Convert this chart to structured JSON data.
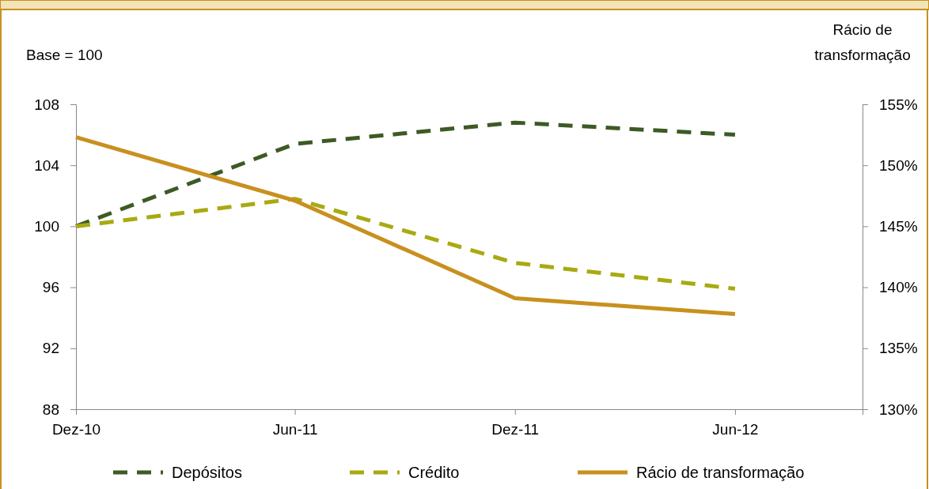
{
  "chart_data": {
    "type": "line",
    "ylabel": "Base = 100",
    "y2label": "Rácio de transformação",
    "x": [
      "2010-12",
      "2011-06",
      "2011-12",
      "2012-06"
    ],
    "xlim": [
      "2010-12",
      "2012-09-15"
    ],
    "xticks": [
      {
        "value": "2010-12",
        "label": "Dez-10"
      },
      {
        "value": "2011-06",
        "label": "Jun-11"
      },
      {
        "value": "2011-12",
        "label": "Dez-11"
      },
      {
        "value": "2012-06",
        "label": "Jun-12"
      }
    ],
    "ylim": [
      88,
      108
    ],
    "yticks": [
      88,
      92,
      96,
      100,
      104,
      108
    ],
    "y2lim": [
      130,
      155
    ],
    "y2ticks": [
      {
        "value": 130,
        "label": "130%"
      },
      {
        "value": 135,
        "label": "135%"
      },
      {
        "value": 140,
        "label": "140%"
      },
      {
        "value": 145,
        "label": "145%"
      },
      {
        "value": 150,
        "label": "150%"
      },
      {
        "value": 155,
        "label": "155%"
      }
    ],
    "series": [
      {
        "name": "Depósitos",
        "color": "#3d5a25",
        "line_style": "dashed",
        "values": [
          100,
          105.4,
          106.8,
          106.0
        ]
      },
      {
        "name": "Crédito",
        "color": "#a8aa12",
        "line_style": "dashed",
        "values": [
          100,
          101.8,
          97.6,
          95.9
        ]
      },
      {
        "name": "Rácio de transformação",
        "color": "#c8901e",
        "line_style": "solid",
        "axis": "y2",
        "values": [
          152.3,
          147.1,
          139.1,
          137.8
        ]
      }
    ],
    "legend": "bottom",
    "grid": false
  }
}
